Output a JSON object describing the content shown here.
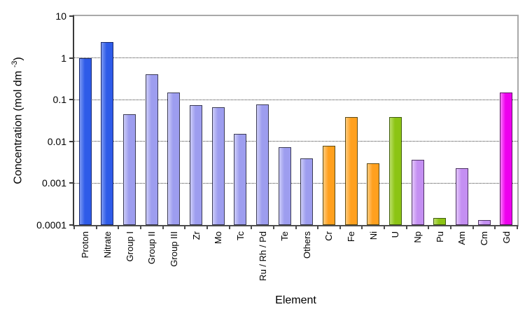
{
  "chart_data": {
    "type": "bar",
    "title": "",
    "xlabel": "Element",
    "ylabel": "Concentration (mol dm⁻³)",
    "ylabel_prefix": "Concentration (mol dm ",
    "ylabel_sup": "-3",
    "ylabel_suffix": ")",
    "y_scale": "log",
    "ylim": [
      0.0001,
      10
    ],
    "y_ticks": [
      10,
      1,
      0.1,
      0.01,
      0.001,
      0.0001
    ],
    "y_tick_labels": [
      "10",
      "1",
      "0.1",
      "0.01",
      "0.001",
      "0.0001"
    ],
    "grid": "horizontal dotted line at each decade (1, 0.1, 0.01, 0.001)",
    "legend": "none",
    "categories": [
      "Proton",
      "Nitrate",
      "Group I",
      "Group II",
      "Group III",
      "Zr",
      "Mo",
      "Tc",
      "Ru / Rh / Pd",
      "Te",
      "Others",
      "Cr",
      "Fe",
      "Ni",
      "U",
      "Np",
      "Pu",
      "Am",
      "Cm",
      "Gd"
    ],
    "values": [
      1.0,
      2.4,
      0.045,
      0.41,
      0.15,
      0.075,
      0.065,
      0.015,
      0.078,
      0.0073,
      0.004,
      0.008,
      0.038,
      0.003,
      0.038,
      0.0036,
      0.00015,
      0.0023,
      0.00013,
      0.15
    ],
    "bar_color_keys": [
      "blue",
      "blue",
      "periwinkle",
      "periwinkle",
      "periwinkle",
      "periwinkle",
      "periwinkle",
      "periwinkle",
      "periwinkle",
      "periwinkle",
      "periwinkle",
      "orange",
      "orange",
      "orange",
      "green",
      "lilac",
      "green",
      "lilac",
      "lilac",
      "magenta"
    ],
    "palette": {
      "blue": {
        "fill": "#2e5be8",
        "light": "#7d99f2",
        "border": "#1c2a6b"
      },
      "periwinkle": {
        "fill": "#9d9def",
        "light": "#cdcdf8",
        "border": "#3c3c55"
      },
      "orange": {
        "fill": "#ffa01e",
        "light": "#ffcb7d",
        "border": "#5d4b16"
      },
      "green": {
        "fill": "#8cc414",
        "light": "#bcdf6a",
        "border": "#405c10"
      },
      "lilac": {
        "fill": "#c48ff2",
        "light": "#e2c6fa",
        "border": "#4d3263"
      },
      "magenta": {
        "fill": "#ee00ee",
        "light": "#fa78fa",
        "border": "#5c1263"
      }
    },
    "axis_colors": {
      "left_axis": "#3a3a3a",
      "bottom_axis": "#4d4d4d",
      "frame": "#a9a9a9",
      "gridline": "#3c3c3c"
    }
  }
}
